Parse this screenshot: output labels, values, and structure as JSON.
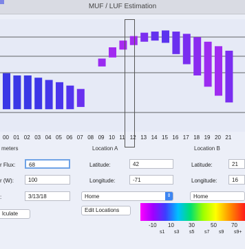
{
  "window": {
    "title": "MUF / LUF Estimation"
  },
  "chart_data": {
    "type": "bar",
    "description_free": true,
    "hours": [
      "00",
      "01",
      "02",
      "03",
      "04",
      "05",
      "06",
      "07",
      "08",
      "09",
      "10",
      "11",
      "12",
      "13",
      "14",
      "15",
      "16",
      "17",
      "18",
      "19",
      "20",
      "21"
    ],
    "selected_hour": "11",
    "bars": [
      {
        "low": 2.0,
        "high": 5.2,
        "color": "#3a37e6"
      },
      {
        "low": 2.0,
        "high": 5.0,
        "color": "#3a37e6"
      },
      {
        "low": 2.0,
        "high": 5.0,
        "color": "#3a37e6"
      },
      {
        "low": 2.0,
        "high": 4.8,
        "color": "#3d36e8"
      },
      {
        "low": 2.0,
        "high": 4.6,
        "color": "#4436ea"
      },
      {
        "low": 2.0,
        "high": 4.4,
        "color": "#4a35ec"
      },
      {
        "low": 2.0,
        "high": 4.1,
        "color": "#5234ee"
      },
      {
        "low": 2.2,
        "high": 3.8,
        "color": "#6a30ef"
      },
      {
        "low": null,
        "high": null,
        "color": ""
      },
      {
        "low": 5.8,
        "high": 6.5,
        "color": "#9a2bf0"
      },
      {
        "low": 6.6,
        "high": 7.5,
        "color": "#a22bf0"
      },
      {
        "low": 7.3,
        "high": 8.1,
        "color": "#a82af0"
      },
      {
        "low": 7.7,
        "high": 8.5,
        "color": "#a22bf0"
      },
      {
        "low": 8.0,
        "high": 8.8,
        "color": "#7c2ff0"
      },
      {
        "low": 8.1,
        "high": 8.9,
        "color": "#6432ee"
      },
      {
        "low": 7.9,
        "high": 9.0,
        "color": "#5b33ee"
      },
      {
        "low": 6.9,
        "high": 8.9,
        "color": "#6a30ef"
      },
      {
        "low": 6.0,
        "high": 8.7,
        "color": "#7a2ef0"
      },
      {
        "low": 5.0,
        "high": 8.4,
        "color": "#8a2cf0"
      },
      {
        "low": 4.0,
        "high": 8.0,
        "color": "#9c2bf0"
      },
      {
        "low": 3.2,
        "high": 7.6,
        "color": "#a02bf0"
      },
      {
        "low": 2.6,
        "high": 7.2,
        "color": "#7a2ef0"
      }
    ],
    "ylim": [
      0,
      10
    ]
  },
  "parameters": {
    "header": "meters",
    "flux_label": "r Flux:",
    "flux_value": "68",
    "power_label": "r (W):",
    "power_value": "100",
    "date_label": ":",
    "date_value": "3/13/18",
    "calculate_label": "lculate"
  },
  "location_a": {
    "header": "Location A",
    "lat_label": "Latitude:",
    "lat_value": "42",
    "lon_label": "Longitude:",
    "lon_value": "-71",
    "preset": "Home",
    "edit_label": "Edit Locations"
  },
  "location_b": {
    "header": "Location B",
    "lat_label": "Latitude:",
    "lat_value": "21",
    "lon_label": "Longitude:",
    "lon_value": "16",
    "preset": "Home"
  },
  "color_scale": {
    "labels": [
      "-10",
      "10",
      "30",
      "50",
      "70"
    ],
    "sublabels": [
      "s1",
      "s3",
      "s5",
      "s7",
      "s9",
      "s9+"
    ]
  }
}
